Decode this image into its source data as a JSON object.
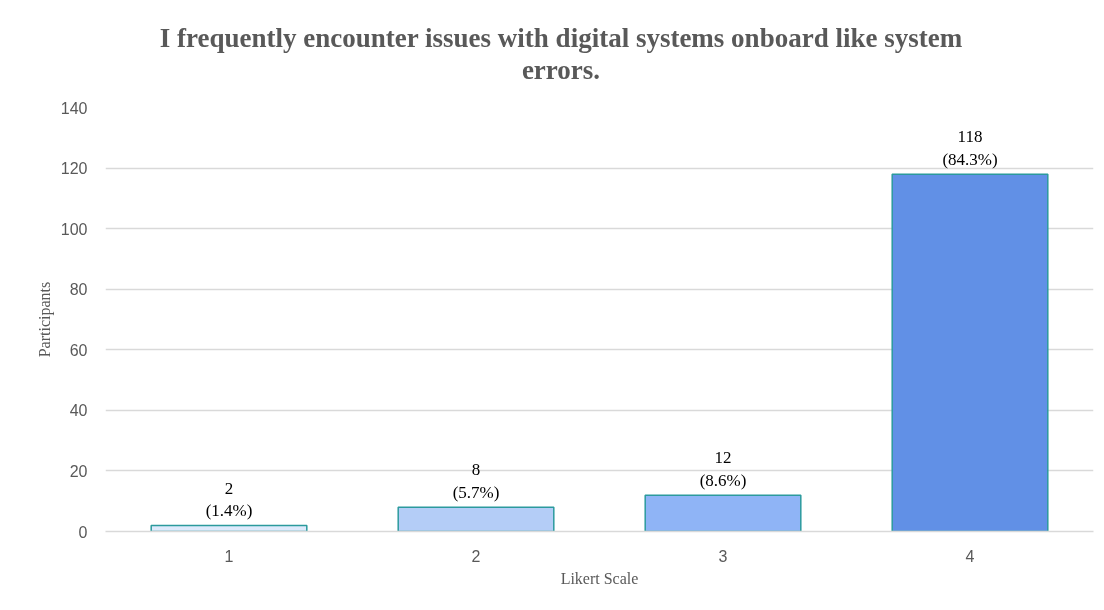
{
  "chart_data": {
    "type": "bar",
    "title": "I frequently encounter issues with digital systems onboard like system errors.",
    "xlabel": "Likert Scale",
    "ylabel": "Participants",
    "categories": [
      "1",
      "2",
      "3",
      "4"
    ],
    "values": [
      2,
      8,
      12,
      118
    ],
    "colors": [
      "#deeafc",
      "#b4cdf7",
      "#8fb4f6",
      "#6190e6"
    ],
    "value_labels": [
      "2\n(1.4%)",
      "8\n(5.7%)",
      "12\n(8.6%)",
      "118\n(84.3%)"
    ],
    "ylim": [
      0,
      140
    ],
    "yticks": [
      0,
      20,
      40,
      60,
      80,
      100,
      120,
      140
    ],
    "grid": "y"
  }
}
